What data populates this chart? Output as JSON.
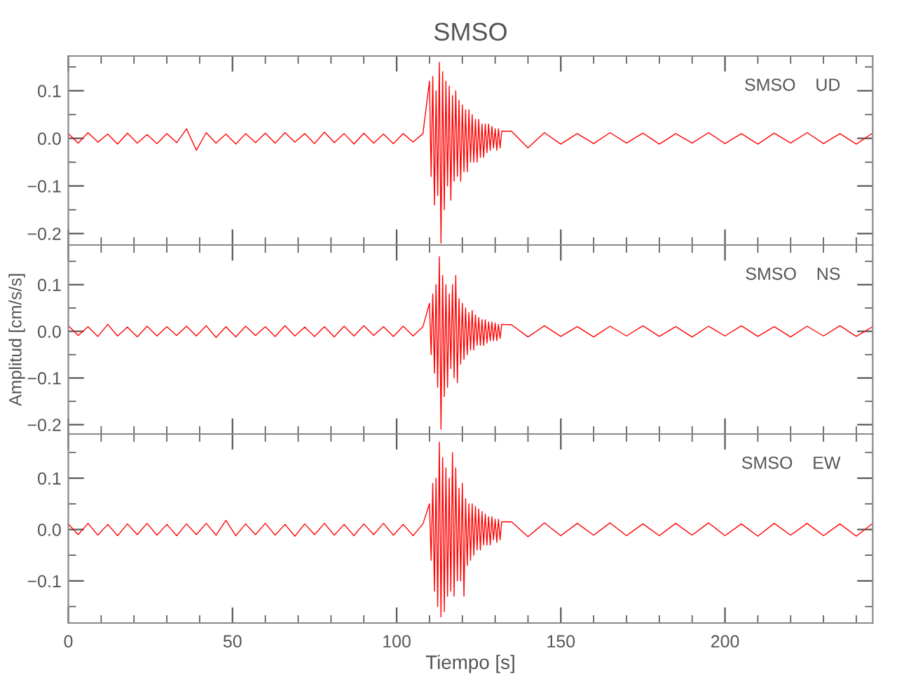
{
  "chart_data": [
    {
      "type": "line",
      "title": "SMSO",
      "annotations": [
        "SMSO    UD"
      ],
      "tick_labels": "y",
      "grid": false,
      "legend": false,
      "marker": "none",
      "line_style": "solid",
      "x": [
        0,
        3,
        6,
        9,
        12,
        15,
        18,
        21,
        24,
        27,
        30,
        33,
        36,
        39,
        42,
        45,
        48,
        51,
        54,
        57,
        60,
        63,
        66,
        69,
        72,
        75,
        78,
        81,
        84,
        87,
        90,
        93,
        96,
        99,
        102,
        105,
        108,
        110,
        110.5,
        111,
        111.5,
        112,
        112.5,
        113,
        113.5,
        114,
        114.5,
        115,
        115.5,
        116,
        116.5,
        117,
        117.5,
        118,
        118.5,
        119,
        119.5,
        120,
        120.5,
        121,
        121.5,
        122,
        122.5,
        123,
        123.5,
        124,
        124.5,
        125,
        125.5,
        126,
        126.5,
        127,
        127.5,
        128,
        128.5,
        129,
        129.5,
        130,
        130.5,
        131,
        131.5,
        132,
        135,
        140,
        145,
        150,
        155,
        160,
        165,
        170,
        175,
        180,
        185,
        190,
        195,
        200,
        205,
        210,
        215,
        220,
        225,
        230,
        235,
        240,
        245
      ],
      "xlim": [
        0,
        245
      ],
      "xticks": [
        0,
        {
          "value": 10,
          "label": null
        },
        {
          "value": 20,
          "label": null
        },
        {
          "value": 30,
          "label": null
        },
        {
          "value": 40,
          "label": null
        },
        50,
        {
          "value": 60,
          "label": null
        },
        {
          "value": 70,
          "label": null
        },
        {
          "value": 80,
          "label": null
        },
        {
          "value": 90,
          "label": null
        },
        100,
        {
          "value": 110,
          "label": null
        },
        {
          "value": 120,
          "label": null
        },
        {
          "value": 130,
          "label": null
        },
        {
          "value": 140,
          "label": null
        },
        150,
        {
          "value": 160,
          "label": null
        },
        {
          "value": 170,
          "label": null
        },
        {
          "value": 180,
          "label": null
        },
        {
          "value": 190,
          "label": null
        },
        200,
        {
          "value": 210,
          "label": null
        },
        {
          "value": 220,
          "label": null
        },
        {
          "value": 230,
          "label": null
        },
        {
          "value": 240,
          "label": null
        }
      ],
      "ylim": [
        -0.224,
        0.173
      ],
      "yticks": [
        {
          "value": -0.2,
          "label": "−0.2"
        },
        {
          "value": -0.15,
          "label": null
        },
        {
          "value": -0.1,
          "label": "−0.1"
        },
        {
          "value": -0.05,
          "label": null
        },
        {
          "value": 0,
          "label": "0.0"
        },
        {
          "value": 0.05,
          "label": null
        },
        {
          "value": 0.1,
          "label": "0.1"
        },
        {
          "value": 0.15,
          "label": null
        }
      ],
      "series": [
        {
          "color": "#ff0000",
          "values": [
            0.01,
            -0.01,
            0.012,
            -0.008,
            0.009,
            -0.012,
            0.011,
            -0.01,
            0.008,
            -0.011,
            0.01,
            -0.009,
            0.02,
            -0.025,
            0.012,
            -0.01,
            0.009,
            -0.012,
            0.01,
            -0.009,
            0.011,
            -0.01,
            0.012,
            -0.008,
            0.01,
            -0.011,
            0.013,
            -0.009,
            0.01,
            -0.012,
            0.011,
            -0.01,
            0.009,
            -0.011,
            0.01,
            -0.008,
            0.01,
            0.12,
            -0.08,
            0.13,
            -0.14,
            0.1,
            -0.12,
            0.16,
            -0.22,
            0.14,
            -0.15,
            0.12,
            -0.1,
            0.11,
            -0.13,
            0.09,
            -0.09,
            0.1,
            -0.08,
            0.08,
            -0.09,
            0.07,
            -0.07,
            0.06,
            -0.07,
            0.06,
            -0.05,
            0.05,
            -0.05,
            0.04,
            -0.05,
            0.04,
            -0.04,
            0.03,
            -0.04,
            0.03,
            -0.03,
            0.03,
            -0.025,
            0.025,
            -0.02,
            0.02,
            -0.025,
            0.02,
            -0.02,
            0.015,
            0.015,
            -0.02,
            0.012,
            -0.012,
            0.01,
            -0.011,
            0.012,
            -0.01,
            0.011,
            -0.012,
            0.01,
            -0.01,
            0.012,
            -0.011,
            0.01,
            -0.012,
            0.011,
            -0.01,
            0.012,
            -0.011,
            0.01,
            -0.012,
            0.011
          ]
        }
      ]
    },
    {
      "type": "line",
      "ylabel": "Amplitud [cm/s/s]",
      "annotations": [
        "SMSO    NS"
      ],
      "tick_labels": "y",
      "grid": false,
      "legend": false,
      "marker": "none",
      "line_style": "solid",
      "x": [
        0,
        3,
        6,
        9,
        12,
        15,
        18,
        21,
        24,
        27,
        30,
        33,
        36,
        39,
        42,
        45,
        48,
        51,
        54,
        57,
        60,
        63,
        66,
        69,
        72,
        75,
        78,
        81,
        84,
        87,
        90,
        93,
        96,
        99,
        102,
        105,
        108,
        110,
        110.5,
        111,
        111.5,
        112,
        112.5,
        113,
        113.5,
        114,
        114.5,
        115,
        115.5,
        116,
        116.5,
        117,
        117.5,
        118,
        118.5,
        119,
        119.5,
        120,
        120.5,
        121,
        121.5,
        122,
        122.5,
        123,
        123.5,
        124,
        124.5,
        125,
        125.5,
        126,
        126.5,
        127,
        127.5,
        128,
        128.5,
        129,
        129.5,
        130,
        130.5,
        131,
        131.5,
        132,
        135,
        140,
        145,
        150,
        155,
        160,
        165,
        170,
        175,
        180,
        185,
        190,
        195,
        200,
        205,
        210,
        215,
        220,
        225,
        230,
        235,
        240,
        245
      ],
      "xlim": [
        0,
        245
      ],
      "xticks": [
        0,
        {
          "value": 10,
          "label": null
        },
        {
          "value": 20,
          "label": null
        },
        {
          "value": 30,
          "label": null
        },
        {
          "value": 40,
          "label": null
        },
        50,
        {
          "value": 60,
          "label": null
        },
        {
          "value": 70,
          "label": null
        },
        {
          "value": 80,
          "label": null
        },
        {
          "value": 90,
          "label": null
        },
        100,
        {
          "value": 110,
          "label": null
        },
        {
          "value": 120,
          "label": null
        },
        {
          "value": 130,
          "label": null
        },
        {
          "value": 140,
          "label": null
        },
        150,
        {
          "value": 160,
          "label": null
        },
        {
          "value": 170,
          "label": null
        },
        {
          "value": 180,
          "label": null
        },
        {
          "value": 190,
          "label": null
        },
        200,
        {
          "value": 210,
          "label": null
        },
        {
          "value": 220,
          "label": null
        },
        {
          "value": 230,
          "label": null
        },
        {
          "value": 240,
          "label": null
        }
      ],
      "ylim": [
        -0.22,
        0.185
      ],
      "yticks": [
        {
          "value": -0.2,
          "label": "−0.2"
        },
        {
          "value": -0.15,
          "label": null
        },
        {
          "value": -0.1,
          "label": "−0.1"
        },
        {
          "value": -0.05,
          "label": null
        },
        {
          "value": 0,
          "label": "0.0"
        },
        {
          "value": 0.05,
          "label": null
        },
        {
          "value": 0.1,
          "label": "0.1"
        },
        {
          "value": 0.15,
          "label": null
        }
      ],
      "series": [
        {
          "color": "#ff0000",
          "values": [
            0.012,
            -0.009,
            0.01,
            -0.011,
            0.015,
            -0.01,
            0.009,
            -0.012,
            0.011,
            -0.01,
            0.01,
            -0.009,
            0.011,
            -0.01,
            0.012,
            -0.013,
            0.01,
            -0.012,
            0.011,
            -0.009,
            0.01,
            -0.011,
            0.012,
            -0.01,
            0.009,
            -0.011,
            0.01,
            -0.012,
            0.011,
            -0.01,
            0.012,
            -0.009,
            0.01,
            -0.011,
            0.011,
            -0.01,
            0.01,
            0.06,
            -0.05,
            0.08,
            -0.09,
            0.1,
            -0.12,
            0.16,
            -0.21,
            0.12,
            -0.14,
            0.1,
            -0.12,
            0.08,
            -0.08,
            0.1,
            -0.1,
            0.12,
            -0.11,
            0.07,
            -0.07,
            0.06,
            -0.06,
            0.05,
            -0.05,
            0.04,
            -0.04,
            0.045,
            -0.04,
            0.035,
            -0.03,
            0.03,
            -0.03,
            0.025,
            -0.03,
            0.025,
            -0.025,
            0.02,
            -0.02,
            0.02,
            -0.02,
            0.018,
            -0.02,
            0.015,
            -0.015,
            0.015,
            0.014,
            -0.012,
            0.012,
            -0.011,
            0.01,
            -0.012,
            0.011,
            -0.01,
            0.012,
            -0.011,
            0.01,
            -0.012,
            0.011,
            -0.01,
            0.012,
            -0.011,
            0.01,
            -0.012,
            0.011,
            -0.01,
            0.012,
            -0.011,
            0.01
          ]
        }
      ]
    },
    {
      "type": "line",
      "xlabel": "Tiempo [s]",
      "annotations": [
        "SMSO    EW"
      ],
      "grid": false,
      "legend": false,
      "marker": "none",
      "line_style": "solid",
      "x": [
        0,
        3,
        6,
        9,
        12,
        15,
        18,
        21,
        24,
        27,
        30,
        33,
        36,
        39,
        42,
        45,
        48,
        51,
        54,
        57,
        60,
        63,
        66,
        69,
        72,
        75,
        78,
        81,
        84,
        87,
        90,
        93,
        96,
        99,
        102,
        105,
        108,
        110,
        110.5,
        111,
        111.5,
        112,
        112.5,
        113,
        113.5,
        114,
        114.5,
        115,
        115.5,
        116,
        116.5,
        117,
        117.5,
        118,
        118.5,
        119,
        119.5,
        120,
        120.5,
        121,
        121.5,
        122,
        122.5,
        123,
        123.5,
        124,
        124.5,
        125,
        125.5,
        126,
        126.5,
        127,
        127.5,
        128,
        128.5,
        129,
        129.5,
        130,
        130.5,
        131,
        131.5,
        132,
        135,
        140,
        145,
        150,
        155,
        160,
        165,
        170,
        175,
        180,
        185,
        190,
        195,
        200,
        205,
        210,
        215,
        220,
        225,
        230,
        235,
        240,
        245
      ],
      "xlim": [
        0,
        245
      ],
      "xticks": [
        0,
        {
          "value": 10,
          "label": null
        },
        {
          "value": 20,
          "label": null
        },
        {
          "value": 30,
          "label": null
        },
        {
          "value": 40,
          "label": null
        },
        50,
        {
          "value": 60,
          "label": null
        },
        {
          "value": 70,
          "label": null
        },
        {
          "value": 80,
          "label": null
        },
        {
          "value": 90,
          "label": null
        },
        100,
        {
          "value": 110,
          "label": null
        },
        {
          "value": 120,
          "label": null
        },
        {
          "value": 130,
          "label": null
        },
        {
          "value": 140,
          "label": null
        },
        150,
        {
          "value": 160,
          "label": null
        },
        {
          "value": 170,
          "label": null
        },
        {
          "value": 180,
          "label": null
        },
        {
          "value": 190,
          "label": null
        },
        200,
        {
          "value": 210,
          "label": null
        },
        {
          "value": 220,
          "label": null
        },
        {
          "value": 230,
          "label": null
        },
        {
          "value": 240,
          "label": null
        }
      ],
      "ylim": [
        -0.182,
        0.186
      ],
      "yticks": [
        {
          "value": -0.15,
          "label": null
        },
        {
          "value": -0.1,
          "label": "−0.1"
        },
        {
          "value": -0.05,
          "label": null
        },
        {
          "value": 0,
          "label": "0.0"
        },
        {
          "value": 0.05,
          "label": null
        },
        {
          "value": 0.1,
          "label": "0.1"
        },
        {
          "value": 0.15,
          "label": null
        }
      ],
      "series": [
        {
          "color": "#ff0000",
          "values": [
            0.011,
            -0.01,
            0.012,
            -0.011,
            0.01,
            -0.012,
            0.011,
            -0.01,
            0.012,
            -0.011,
            0.01,
            -0.012,
            0.011,
            -0.01,
            0.012,
            -0.011,
            0.018,
            -0.012,
            0.011,
            -0.01,
            0.012,
            -0.011,
            0.01,
            -0.013,
            0.011,
            -0.01,
            0.012,
            -0.011,
            0.01,
            -0.012,
            0.011,
            -0.01,
            0.012,
            -0.011,
            0.01,
            -0.012,
            0.011,
            0.05,
            -0.06,
            0.09,
            -0.12,
            0.1,
            -0.15,
            0.17,
            -0.17,
            0.14,
            -0.16,
            0.12,
            -0.13,
            0.1,
            -0.12,
            0.15,
            -0.13,
            0.12,
            -0.1,
            0.08,
            -0.1,
            0.09,
            -0.13,
            0.06,
            -0.07,
            0.05,
            -0.06,
            0.05,
            -0.05,
            0.045,
            -0.04,
            0.04,
            -0.04,
            0.035,
            -0.03,
            0.03,
            -0.03,
            0.025,
            -0.03,
            0.025,
            -0.02,
            0.02,
            -0.025,
            0.02,
            -0.02,
            0.015,
            0.015,
            -0.014,
            0.013,
            -0.012,
            0.012,
            -0.011,
            0.013,
            -0.012,
            0.011,
            -0.012,
            0.012,
            -0.011,
            0.013,
            -0.012,
            0.011,
            -0.013,
            0.012,
            -0.011,
            0.012,
            -0.012,
            0.011,
            -0.013,
            0.012
          ]
        }
      ]
    }
  ]
}
